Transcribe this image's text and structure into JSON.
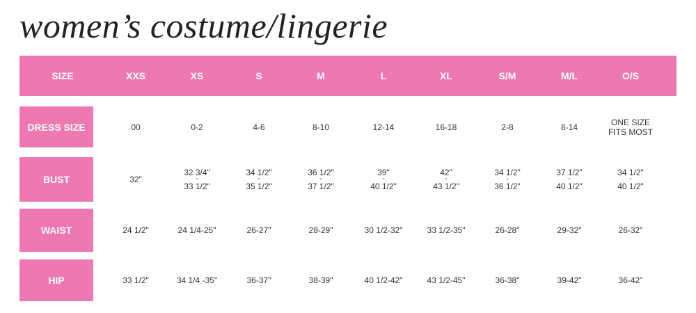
{
  "title": "women’s costume/lingerie",
  "colors": {
    "accent": "#ee78b1",
    "text": "#333333"
  },
  "header": [
    "SIZE",
    "XXS",
    "XS",
    "S",
    "M",
    "L",
    "XL",
    "S/M",
    "M/L",
    "O/S"
  ],
  "rows": [
    {
      "label": "DRESS SIZE",
      "values": [
        "00",
        "0-2",
        "4-6",
        "8-10",
        "12-14",
        "16-18",
        "2-8",
        "8-14",
        "ONE SIZE FITS MOST"
      ]
    },
    {
      "label": "BUST",
      "values": [
        "32\"",
        "32 3/4\" - 33 1/2\"",
        "34 1/2\" - 35 1/2\"",
        "36 1/2\" - 37 1/2\"",
        "39\" - 40 1/2\"",
        "42\" - 43 1/2\"",
        "34 1/2\" - 36 1/2\"",
        "37 1/2\" - 40 1/2\"",
        "34 1/2\" - 40 1/2\""
      ]
    },
    {
      "label": "WAIST",
      "values": [
        "24 1/2\"",
        "24 1/4-25\"",
        "26-27\"",
        "28-29\"",
        "30 1/2-32\"",
        "33 1/2-35\"",
        "26-28\"",
        "29-32\"",
        "26-32\""
      ]
    },
    {
      "label": "HIP",
      "values": [
        "33 1/2\"",
        "34 1/4 -35\"",
        "36-37\"",
        "38-39\"",
        "40 1/2-42\"",
        "43 1/2-45\"",
        "36-38\"",
        "39-42\"",
        "36-42\""
      ]
    }
  ]
}
